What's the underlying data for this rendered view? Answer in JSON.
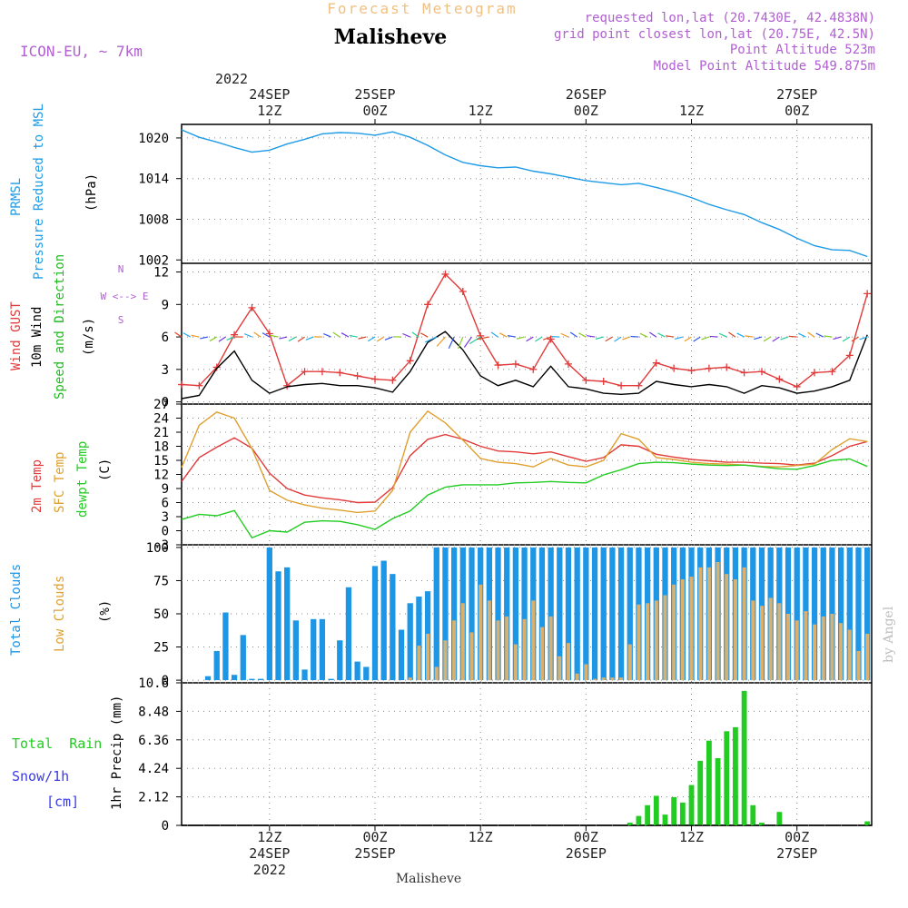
{
  "header": {
    "title": "Malisheve",
    "subtitle": "Forecast Meteogram",
    "model": "ICON-EU, ~ 7km",
    "requested": "requested lon,lat (20.7430E, 42.4838N)",
    "grid_point": "grid point closest lon,lat (20.75E, 42.5N)",
    "point_altitude": "Point Altitude 523m",
    "model_altitude": "Model Point Altitude 549.875m",
    "footer_label": "Malisheve",
    "watermark": "by Angel"
  },
  "colors": {
    "pressure": "#1e9be6",
    "gust": "#e23a3a",
    "wind": "#000000",
    "dir_label": "#22bb22",
    "temp2m": "#e23a3a",
    "sfc": "#e0a030",
    "dew": "#22cc22",
    "total_clouds": "#1e96e6",
    "low_clouds": "#d8b070",
    "precip": "#22cc22",
    "snow": "#3a3ae6",
    "header_purple": "#b060d0",
    "subtitle": "#f0c080"
  },
  "time_axis": {
    "top_year": "2022",
    "top": [
      {
        "lines": [
          "24SEP",
          "12Z"
        ]
      },
      {
        "lines": [
          "25SEP",
          "00Z"
        ]
      },
      {
        "lines": [
          "12Z"
        ]
      },
      {
        "lines": [
          "26SEP",
          "00Z"
        ]
      },
      {
        "lines": [
          "12Z"
        ]
      },
      {
        "lines": [
          "27SEP",
          "00Z"
        ]
      }
    ],
    "bottom": [
      {
        "lines": [
          "12Z",
          "24SEP",
          "2022"
        ]
      },
      {
        "lines": [
          "00Z",
          "25SEP"
        ]
      },
      {
        "lines": [
          "12Z"
        ]
      },
      {
        "lines": [
          "00Z",
          "26SEP"
        ]
      },
      {
        "lines": [
          "12Z"
        ]
      },
      {
        "lines": [
          "00Z",
          "27SEP"
        ]
      }
    ],
    "hours": [
      12,
      24,
      36,
      48,
      60,
      72
    ],
    "range_hours": [
      2,
      80.5
    ]
  },
  "panel_labels": {
    "pressure": {
      "name": "PRMSL",
      "desc": "Pressure Reduced to MSL",
      "unit": "(hPa)"
    },
    "wind": {
      "gust": "Wind GUST",
      "wind": "10m Wind",
      "dir": "Speed and Direction",
      "unit": "(m/s)",
      "compass": "W <--> E",
      "compass_ns_top": "N",
      "compass_ns_bot": "S"
    },
    "temp": {
      "t2m": "2m Temp",
      "sfc": "SFC Temp",
      "dew": "dewpt Temp",
      "unit": "(C)"
    },
    "clouds": {
      "total": "Total Clouds",
      "low": "Low Clouds",
      "unit": "(%)"
    },
    "precip": {
      "rain": "Total  Rain",
      "snow": "Snow/1h",
      "cm": "[cm]",
      "unit": "1hr Precip (mm)"
    }
  },
  "chart_data": [
    {
      "type": "line",
      "title": "PRMSL Pressure Reduced to MSL",
      "ylabel": "(hPa)",
      "ylim": [
        1001.5,
        1022
      ],
      "yticks": [
        1002,
        1008,
        1014,
        1020
      ],
      "series": [
        {
          "name": "PRMSL",
          "color": "#1e9be6",
          "x": [
            2,
            4,
            6,
            8,
            10,
            12,
            14,
            16,
            18,
            20,
            22,
            24,
            26,
            28,
            30,
            32,
            34,
            36,
            38,
            40,
            42,
            44,
            46,
            48,
            50,
            52,
            54,
            56,
            58,
            60,
            62,
            64,
            66,
            68,
            70,
            72,
            74,
            76,
            78,
            80
          ],
          "y": [
            1021.2,
            1020.1,
            1019.4,
            1018.6,
            1017.9,
            1018.2,
            1019.1,
            1019.8,
            1020.6,
            1020.8,
            1020.7,
            1020.4,
            1020.9,
            1020.1,
            1018.9,
            1017.5,
            1016.4,
            1015.9,
            1015.6,
            1015.7,
            1015.1,
            1014.7,
            1014.2,
            1013.7,
            1013.4,
            1013.1,
            1013.3,
            1012.7,
            1012.0,
            1011.2,
            1010.2,
            1009.4,
            1008.7,
            1007.5,
            1006.5,
            1005.2,
            1004.1,
            1003.5,
            1003.4,
            1002.5
          ]
        }
      ]
    },
    {
      "type": "line",
      "title": "Wind GUST / 10m Wind Speed and Direction",
      "ylabel": "(m/s)",
      "ylim": [
        -0.2,
        12.8
      ],
      "yticks": [
        0,
        3,
        6,
        9,
        12
      ],
      "series": [
        {
          "name": "Wind GUST",
          "color": "#e23a3a",
          "markers": true,
          "x": [
            2,
            4,
            6,
            8,
            10,
            12,
            14,
            16,
            18,
            20,
            22,
            24,
            26,
            28,
            30,
            32,
            34,
            36,
            38,
            40,
            42,
            44,
            46,
            48,
            50,
            52,
            54,
            56,
            58,
            60,
            62,
            64,
            66,
            68,
            70,
            72,
            74,
            76,
            78,
            80
          ],
          "y": [
            1.6,
            1.5,
            3.2,
            6.2,
            8.7,
            6.3,
            1.5,
            2.8,
            2.8,
            2.7,
            2.4,
            2.1,
            2.0,
            3.8,
            9.0,
            11.8,
            10.2,
            6.1,
            3.4,
            3.5,
            3.0,
            5.8,
            3.5,
            2.0,
            1.9,
            1.5,
            1.5,
            3.6,
            3.1,
            2.9,
            3.1,
            3.2,
            2.7,
            2.8,
            2.1,
            1.4,
            2.7,
            2.8,
            4.3,
            10.0
          ]
        },
        {
          "name": "10m Wind",
          "color": "#000000",
          "x": [
            2,
            4,
            6,
            8,
            10,
            12,
            14,
            16,
            18,
            20,
            22,
            24,
            26,
            28,
            30,
            32,
            34,
            36,
            38,
            40,
            42,
            44,
            46,
            48,
            50,
            52,
            54,
            56,
            58,
            60,
            62,
            64,
            66,
            68,
            70,
            72,
            74,
            76,
            78,
            80
          ],
          "y": [
            0.3,
            0.6,
            3.1,
            4.7,
            2.0,
            0.8,
            1.4,
            1.6,
            1.7,
            1.5,
            1.5,
            1.3,
            0.9,
            2.8,
            5.5,
            6.5,
            4.8,
            2.4,
            1.5,
            2.0,
            1.4,
            3.3,
            1.4,
            1.2,
            0.8,
            0.7,
            0.8,
            1.9,
            1.6,
            1.4,
            1.6,
            1.4,
            0.8,
            1.5,
            1.3,
            0.8,
            1.0,
            1.4,
            2.0,
            6.2
          ]
        }
      ]
    },
    {
      "type": "line",
      "title": "2m Temp / SFC Temp / dewpt Temp",
      "ylabel": "(C)",
      "ylim": [
        -3,
        27
      ],
      "yticks": [
        -3,
        0,
        3,
        6,
        9,
        12,
        15,
        18,
        21,
        24,
        27
      ],
      "series": [
        {
          "name": "2m Temp",
          "color": "#e23a3a",
          "x": [
            2,
            4,
            6,
            8,
            10,
            12,
            14,
            16,
            18,
            20,
            22,
            24,
            26,
            28,
            30,
            32,
            34,
            36,
            38,
            40,
            42,
            44,
            46,
            48,
            50,
            52,
            54,
            56,
            58,
            60,
            62,
            64,
            66,
            68,
            70,
            72,
            74,
            76,
            78,
            80
          ],
          "y": [
            10.5,
            15.6,
            17.8,
            19.8,
            17.6,
            12.3,
            9.0,
            7.6,
            7.0,
            6.6,
            6.0,
            6.1,
            9.2,
            16.0,
            19.5,
            20.5,
            19.5,
            18.0,
            17.0,
            16.8,
            16.4,
            16.8,
            15.8,
            14.8,
            15.6,
            18.3,
            18.0,
            16.3,
            15.7,
            15.2,
            14.9,
            14.6,
            14.6,
            14.4,
            14.3,
            14.0,
            14.4,
            16.0,
            18.0,
            19.0
          ]
        },
        {
          "name": "SFC Temp",
          "color": "#e0a030",
          "x": [
            2,
            4,
            6,
            8,
            10,
            12,
            14,
            16,
            18,
            20,
            22,
            24,
            26,
            28,
            30,
            32,
            34,
            36,
            38,
            40,
            42,
            44,
            46,
            48,
            50,
            52,
            54,
            56,
            58,
            60,
            62,
            64,
            66,
            68,
            70,
            72,
            74,
            76,
            78,
            80
          ],
          "y": [
            13.5,
            22.5,
            25.3,
            24.0,
            17.5,
            8.6,
            6.5,
            5.5,
            4.8,
            4.4,
            3.9,
            4.2,
            8.6,
            21.0,
            25.5,
            23.0,
            19.3,
            15.4,
            14.6,
            14.3,
            13.6,
            15.4,
            14.0,
            13.6,
            15.0,
            20.7,
            19.5,
            15.6,
            15.2,
            14.6,
            14.3,
            14.2,
            14.0,
            13.7,
            13.6,
            13.9,
            14.2,
            17.3,
            19.6,
            19.0
          ]
        },
        {
          "name": "dewpt Temp",
          "color": "#22cc22",
          "x": [
            2,
            4,
            6,
            8,
            10,
            12,
            14,
            16,
            18,
            20,
            22,
            24,
            26,
            28,
            30,
            32,
            34,
            36,
            38,
            40,
            42,
            44,
            46,
            48,
            50,
            52,
            54,
            56,
            58,
            60,
            62,
            64,
            66,
            68,
            70,
            72,
            74,
            76,
            78,
            80
          ],
          "y": [
            2.4,
            3.5,
            3.2,
            4.3,
            -1.5,
            0.0,
            -0.3,
            1.8,
            2.1,
            2.0,
            1.3,
            0.3,
            2.6,
            4.2,
            7.6,
            9.3,
            9.8,
            9.8,
            9.8,
            10.2,
            10.3,
            10.5,
            10.3,
            10.2,
            11.9,
            13.0,
            14.3,
            14.6,
            14.5,
            14.2,
            14.0,
            13.9,
            14.0,
            13.6,
            13.2,
            13.1,
            13.9,
            15.0,
            15.3,
            13.7
          ]
        }
      ]
    },
    {
      "type": "bar",
      "title": "Total Clouds / Low Clouds",
      "ylabel": "(%)",
      "ylim": [
        -2,
        102
      ],
      "yticks": [
        0,
        25,
        50,
        75,
        100
      ],
      "x": [
        2,
        3,
        4,
        5,
        6,
        7,
        8,
        9,
        10,
        11,
        12,
        13,
        14,
        15,
        16,
        17,
        18,
        19,
        20,
        21,
        22,
        23,
        24,
        25,
        26,
        27,
        28,
        29,
        30,
        31,
        32,
        33,
        34,
        35,
        36,
        37,
        38,
        39,
        40,
        41,
        42,
        43,
        44,
        45,
        46,
        47,
        48,
        49,
        50,
        51,
        52,
        53,
        54,
        55,
        56,
        57,
        58,
        59,
        60,
        61,
        62,
        63,
        64,
        65,
        66,
        67,
        68,
        69,
        70,
        71,
        72,
        73,
        74,
        75,
        76,
        77,
        78,
        79,
        80
      ],
      "series": [
        {
          "name": "Total Clouds",
          "color": "#1e96e6",
          "values": [
            0,
            0,
            0,
            3,
            22,
            51,
            4,
            34,
            1,
            1,
            100,
            82,
            85,
            45,
            8,
            46,
            46,
            1,
            30,
            70,
            14,
            10,
            86,
            90,
            80,
            38,
            58,
            63,
            67,
            100,
            100,
            100,
            100,
            100,
            100,
            100,
            100,
            100,
            100,
            100,
            100,
            100,
            100,
            100,
            100,
            100,
            100,
            100,
            100,
            100,
            100,
            100,
            100,
            100,
            100,
            100,
            100,
            100,
            100,
            100,
            100,
            100,
            100,
            100,
            100,
            100,
            100,
            100,
            100,
            100,
            100,
            100,
            100,
            100,
            100,
            100,
            100,
            100,
            100
          ]
        },
        {
          "name": "Low Clouds",
          "color": "#d8b070",
          "values": [
            0,
            0,
            0,
            0,
            0,
            0,
            0,
            0,
            0,
            0,
            0,
            0,
            0,
            0,
            0,
            0,
            0,
            0,
            0,
            0,
            0,
            0,
            0,
            0,
            0,
            0,
            2,
            26,
            35,
            10,
            30,
            45,
            58,
            36,
            72,
            60,
            45,
            48,
            27,
            46,
            60,
            40,
            48,
            18,
            28,
            5,
            12,
            1,
            2,
            2,
            2,
            27,
            57,
            58,
            60,
            64,
            72,
            76,
            78,
            85,
            85,
            89,
            80,
            76,
            85,
            60,
            56,
            62,
            58,
            50,
            45,
            52,
            42,
            48,
            50,
            43,
            38,
            22,
            35
          ]
        }
      ]
    },
    {
      "type": "bar",
      "title": "1hr Precip (mm)",
      "ylabel": "1hr Precip (mm)",
      "ylim": [
        0,
        10.6
      ],
      "yticks": [
        0,
        2.12,
        4.24,
        6.36,
        8.48,
        10.6
      ],
      "ytick_labels": [
        "0",
        "2.12",
        "4.24",
        "6.36",
        "8.48",
        "10.6"
      ],
      "x": [
        53,
        54,
        55,
        56,
        57,
        58,
        59,
        60,
        61,
        62,
        63,
        64,
        65,
        66,
        67,
        68,
        70,
        80
      ],
      "series": [
        {
          "name": "Total Rain",
          "color": "#22cc22",
          "values": [
            0.2,
            0.7,
            1.5,
            2.2,
            0.8,
            2.1,
            1.7,
            3.0,
            4.8,
            6.3,
            5.0,
            7.0,
            7.3,
            10.0,
            1.5,
            0.2,
            1.0,
            0.3
          ]
        }
      ]
    }
  ]
}
